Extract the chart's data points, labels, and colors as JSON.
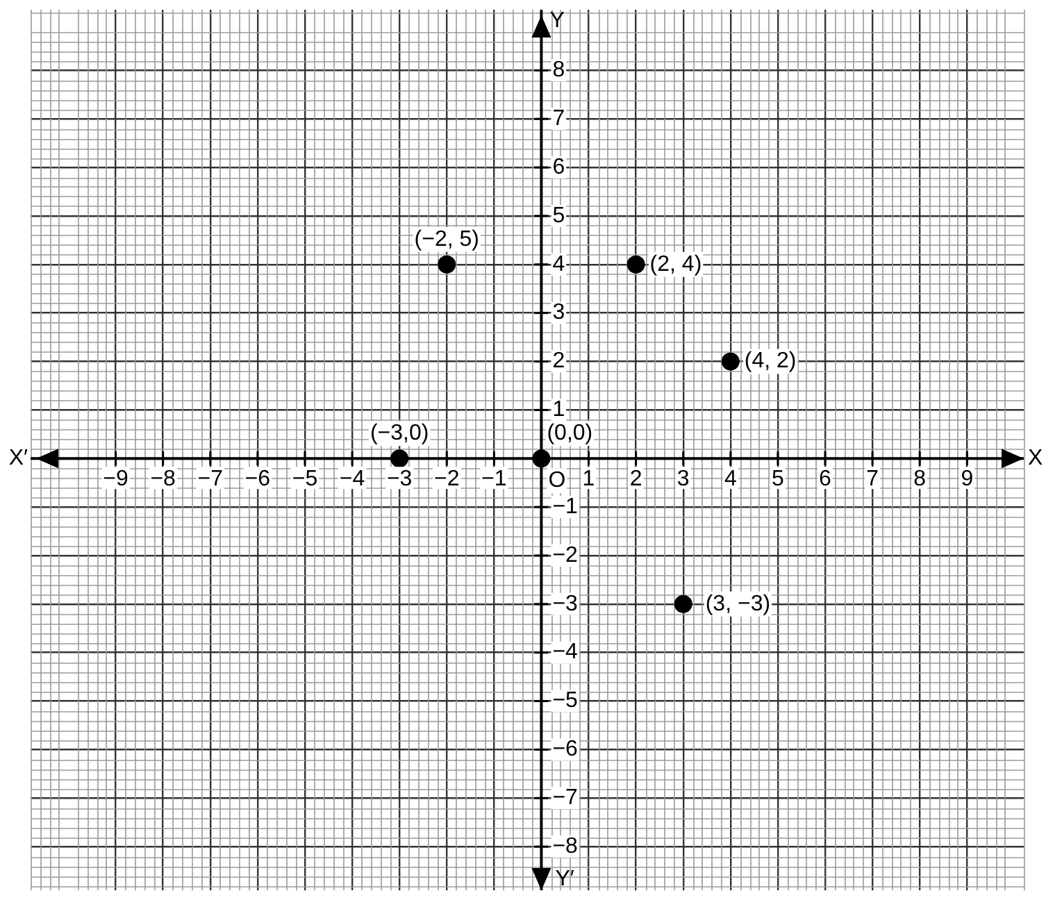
{
  "chart_data": {
    "type": "scatter",
    "xlabel": "X",
    "ylabel": "Y",
    "x": [
      -3,
      -2,
      2,
      4,
      3,
      0
    ],
    "values": [
      0,
      4,
      4,
      2,
      -3,
      0
    ],
    "color": "#000000",
    "marker": "circle",
    "grid": true,
    "xlim": [
      -10.8,
      10.2
    ],
    "ylim": [
      -8.9,
      9.25
    ],
    "xticks": [
      -9,
      -8,
      -7,
      -6,
      -5,
      -4,
      -3,
      -2,
      -1,
      1,
      2,
      3,
      4,
      5,
      6,
      7,
      8,
      9
    ],
    "yticks": [
      -8,
      -7,
      -6,
      -5,
      -4,
      -3,
      -2,
      -1,
      1,
      2,
      3,
      4,
      5,
      6,
      7,
      8
    ],
    "annotations": [
      {
        "text": "(−3,0)",
        "x": -3,
        "y": 0
      },
      {
        "text": "(−2, 5)",
        "x": -2,
        "y": 4
      },
      {
        "text": "(2, 4)",
        "x": 2,
        "y": 4
      },
      {
        "text": "(4, 2)",
        "x": 4,
        "y": 2
      },
      {
        "text": "(3, −3)",
        "x": 3,
        "y": -3
      },
      {
        "text": "(0,0)",
        "x": 0,
        "y": 0
      },
      {
        "text": "O",
        "x": 0,
        "y": 0
      },
      "X′",
      "Y′"
    ]
  }
}
